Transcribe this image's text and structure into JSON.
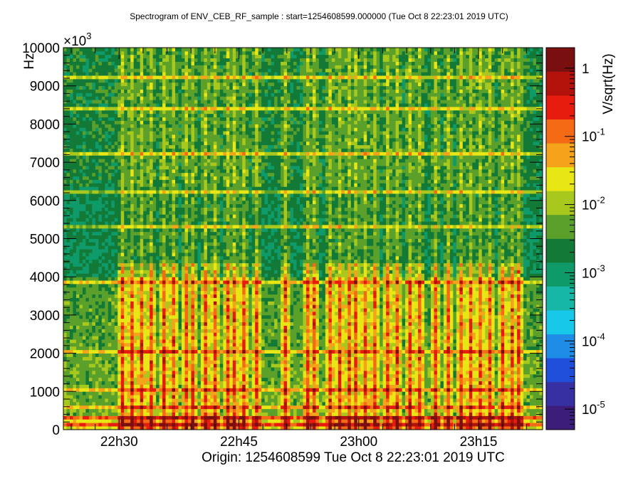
{
  "chart_data": {
    "type": "heatmap",
    "title": "Spectrogram of ENV_CEB_RF_sample : start=1254608599.000000 (Tue Oct  8 22:23:01 2019 UTC)",
    "ylabel": "Hz",
    "y_multiplier": "×10",
    "y_multiplier_exp": "3",
    "xlabel": "Origin: 1254608599  Tue Oct  8 22:23:01 2019 UTC",
    "colorbar_label": "V/sqrt(Hz)",
    "x_range_minutes": [
      0,
      60
    ],
    "x_ticks": [
      {
        "label": "22h30",
        "minute": 6.98
      },
      {
        "label": "22h45",
        "minute": 21.98
      },
      {
        "label": "23h00",
        "minute": 36.98
      },
      {
        "label": "23h15",
        "minute": 51.98
      }
    ],
    "y_range_kHz": [
      0,
      10000
    ],
    "y_ticks": [
      "0",
      "1000",
      "2000",
      "3000",
      "4000",
      "5000",
      "6000",
      "7000",
      "8000",
      "9000",
      "10000"
    ],
    "y_tick_values": [
      0,
      1000,
      2000,
      3000,
      4000,
      5000,
      6000,
      7000,
      8000,
      9000,
      10000
    ],
    "colorbar": {
      "scale": "log",
      "range": [
        5e-06,
        2
      ],
      "ticks": [
        {
          "value": 1,
          "base": "1",
          "exp": ""
        },
        {
          "value": 0.1,
          "base": "10",
          "exp": "-1"
        },
        {
          "value": 0.01,
          "base": "10",
          "exp": "-2"
        },
        {
          "value": 0.001,
          "base": "10",
          "exp": "-3"
        },
        {
          "value": 0.0001,
          "base": "10",
          "exp": "-4"
        },
        {
          "value": 1e-05,
          "base": "10",
          "exp": "-5"
        }
      ],
      "palette": [
        "#3c1e7a",
        "#3730a3",
        "#1f4fd8",
        "#1f8de8",
        "#18c8e8",
        "#17b7a8",
        "#0f9a6a",
        "#127a36",
        "#5aa02a",
        "#a8c81e",
        "#e8e615",
        "#f5a31a",
        "#f56a14",
        "#e81c0e",
        "#b3120b",
        "#7a0f0f"
      ]
    },
    "features": {
      "horizontal_lines_kHz": [
        150,
        330,
        560,
        1050,
        2000,
        3900,
        5300,
        6250,
        7200,
        8450,
        9200
      ],
      "burst_minutes": [
        7.0,
        8.2,
        9.4,
        11.0,
        12.3,
        13.6,
        15.0,
        16.2,
        17.5,
        18.9,
        20.2,
        21.0,
        22.5,
        24.0,
        27.5,
        30.3,
        31.3,
        33.0,
        34.2,
        35.6,
        36.4,
        37.5,
        38.8,
        40.2,
        41.6,
        43.0,
        44.5,
        46.2,
        47.9,
        49.6,
        50.8,
        52.0,
        53.3,
        54.6,
        55.8,
        56.9
      ],
      "burst_top_kHz": 4300,
      "broadband_shoulder_kHz": 4000
    }
  }
}
